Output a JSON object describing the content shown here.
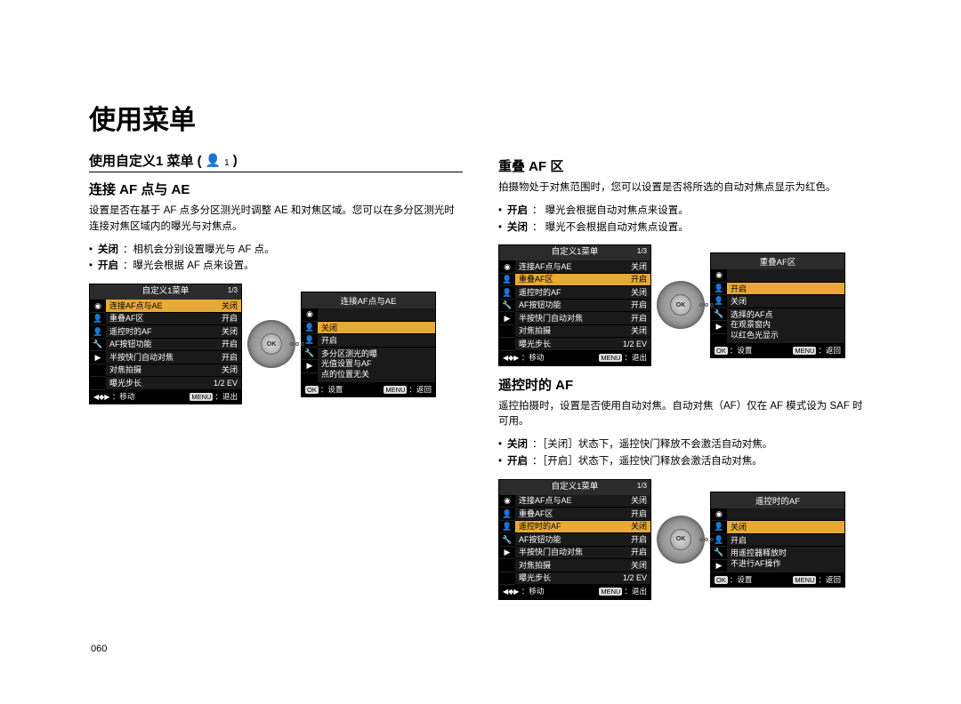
{
  "page_title": "使用菜单",
  "page_number": "060",
  "colors": {
    "menu_bg": "#1a1a1a",
    "menu_header_bg": "#2b2b2b",
    "highlight": "#e8a838",
    "text": "#000000",
    "white": "#ffffff"
  },
  "left": {
    "section_title": "使用自定义1 菜单 (",
    "section_title_suffix": ")",
    "section_icon_sub": "1",
    "sub1": {
      "title": "连接 AF 点与 AE",
      "desc": "设置是否在基于 AF 点多分区测光时调整 AE 和对焦区域。您可以在多分区测光时连接对焦区域内的曝光与对焦点。",
      "bullets": [
        {
          "label": "关闭",
          "text": "：相机会分别设置曝光与 AF 点。"
        },
        {
          "label": "开启",
          "text": "：曝光会根据 AF 点来设置。"
        }
      ],
      "menu1": {
        "header": "自定义1菜单",
        "page": "1/3",
        "rows": [
          {
            "name": "连接AF点与AE",
            "val": "关闭",
            "sel": true
          },
          {
            "name": "重叠AF区",
            "val": "开启"
          },
          {
            "name": "遥控时的AF",
            "val": "关闭"
          },
          {
            "name": "AF按钮功能",
            "val": "开启"
          },
          {
            "name": "半按快门自动对焦",
            "val": "开启"
          },
          {
            "name": "对焦拍摄",
            "val": "关闭"
          },
          {
            "name": "曝光步长",
            "val": "1/2 EV"
          }
        ],
        "footer_left": "：移动",
        "footer_btn": "MENU",
        "footer_right": "：退出"
      },
      "menu2": {
        "header": "连接AF点与AE",
        "rows": [
          {
            "name": "关闭",
            "sel": true
          },
          {
            "name": "开启"
          }
        ],
        "info": [
          "多分区测光的曝",
          "光值设置与AF",
          "点的位置无关"
        ],
        "footer_left_btn": "OK",
        "footer_left": "：设置",
        "footer_btn": "MENU",
        "footer_right": "：返回"
      }
    }
  },
  "right": {
    "sub1": {
      "title": "重叠 AF 区",
      "desc": "拍摄物处于对焦范围时，您可以设置是否将所选的自动对焦点显示为红色。",
      "bullets": [
        {
          "label": "开启",
          "text": "： 曝光会根据自动对焦点来设置。"
        },
        {
          "label": "关闭",
          "text": "： 曝光不会根据自动对焦点设置。"
        }
      ],
      "menu1": {
        "header": "自定义1菜单",
        "page": "1/3",
        "rows": [
          {
            "name": "连接AF点与AE",
            "val": "关闭"
          },
          {
            "name": "重叠AF区",
            "val": "开启",
            "sel": true
          },
          {
            "name": "遥控时的AF",
            "val": "关闭"
          },
          {
            "name": "AF按钮功能",
            "val": "开启"
          },
          {
            "name": "半按快门自动对焦",
            "val": "开启"
          },
          {
            "name": "对焦拍摄",
            "val": "关闭"
          },
          {
            "name": "曝光步长",
            "val": "1/2 EV"
          }
        ],
        "footer_left": "：移动",
        "footer_btn": "MENU",
        "footer_right": "：退出"
      },
      "menu2": {
        "header": "重叠AF区",
        "rows": [
          {
            "name": "开启",
            "sel": true
          },
          {
            "name": "关闭"
          }
        ],
        "info": [
          "选择的AF点",
          "在观景窗内",
          "以红色光显示"
        ],
        "footer_left_btn": "OK",
        "footer_left": "：设置",
        "footer_btn": "MENU",
        "footer_right": "：返回"
      }
    },
    "sub2": {
      "title": "遥控时的 AF",
      "desc": "遥控拍摄时，设置是否使用自动对焦。自动对焦（AF）仅在 AF 模式设为 SAF 时可用。",
      "bullets": [
        {
          "label": "关闭",
          "text": "：［关闭］状态下，遥控快门释放不会激活自动对焦。"
        },
        {
          "label": "开启",
          "text": "：［开启］状态下，遥控快门释放会激活自动对焦。"
        }
      ],
      "menu1": {
        "header": "自定义1菜单",
        "page": "1/3",
        "rows": [
          {
            "name": "连接AF点与AE",
            "val": "关闭"
          },
          {
            "name": "重叠AF区",
            "val": "开启"
          },
          {
            "name": "遥控时的AF",
            "val": "关闭",
            "sel": true
          },
          {
            "name": "AF按钮功能",
            "val": "开启"
          },
          {
            "name": "半按快门自动对焦",
            "val": "开启"
          },
          {
            "name": "对焦拍摄",
            "val": "关闭"
          },
          {
            "name": "曝光步长",
            "val": "1/2 EV"
          }
        ],
        "footer_left": "：移动",
        "footer_btn": "MENU",
        "footer_right": "：退出"
      },
      "menu2": {
        "header": "遥控时的AF",
        "rows": [
          {
            "name": "关闭",
            "sel": true
          },
          {
            "name": "开启"
          }
        ],
        "info": [
          "用遥控器释放时",
          "不进行AF操作"
        ],
        "footer_left_btn": "OK",
        "footer_left": "：设置",
        "footer_btn": "MENU",
        "footer_right": "：返回"
      }
    }
  },
  "icons": [
    "📷",
    "👤₁",
    "👤₂",
    "🔧",
    "▶"
  ]
}
